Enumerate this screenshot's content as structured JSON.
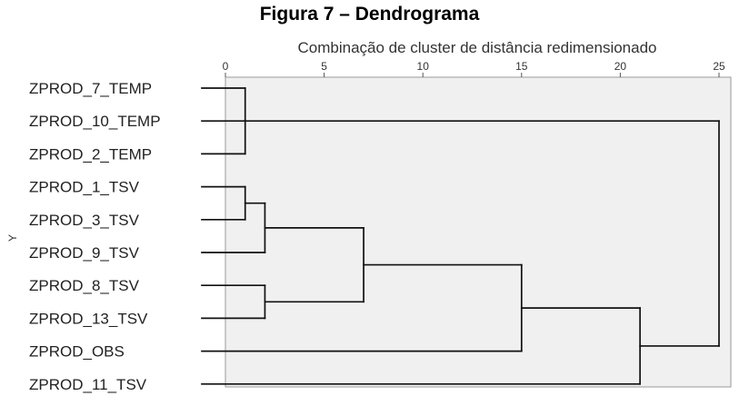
{
  "figure_title": "Figura 7 – Dendrograma",
  "chart_data": {
    "type": "dendrogram",
    "title": "Figura 7 – Dendrograma",
    "xlabel": "Combinação de cluster de distância redimensionado",
    "ylabel": "Y",
    "xlim": [
      0,
      25
    ],
    "xticks": [
      0,
      5,
      10,
      15,
      20,
      25
    ],
    "xtick_labels": [
      "0",
      "5",
      "10",
      "15",
      "20",
      "25"
    ],
    "grid": false,
    "leaves": [
      "ZPROD_7_TEMP",
      "ZPROD_10_TEMP",
      "ZPROD_2_TEMP",
      "ZPROD_1_TSV",
      "ZPROD_3_TSV",
      "ZPROD_9_TSV",
      "ZPROD_8_TSV",
      "ZPROD_13_TSV",
      "ZPROD_OBS",
      "ZPROD_11_TSV"
    ],
    "merges": [
      {
        "id": "c1",
        "children": [
          "ZPROD_7_TEMP",
          "ZPROD_2_TEMP"
        ],
        "distance": 1
      },
      {
        "id": "c2",
        "children": [
          "ZPROD_1_TSV",
          "ZPROD_3_TSV"
        ],
        "distance": 1
      },
      {
        "id": "c3",
        "children": [
          "c2",
          "ZPROD_9_TSV"
        ],
        "distance": 2
      },
      {
        "id": "c4",
        "children": [
          "ZPROD_8_TSV",
          "ZPROD_13_TSV"
        ],
        "distance": 2
      },
      {
        "id": "c5",
        "children": [
          "c3",
          "c4"
        ],
        "distance": 7
      },
      {
        "id": "c6",
        "children": [
          "c5",
          "ZPROD_OBS"
        ],
        "distance": 15
      },
      {
        "id": "c7",
        "children": [
          "c6",
          "ZPROD_11_TSV"
        ],
        "distance": 21
      },
      {
        "id": "c8",
        "children": [
          "ZPROD_10_TEMP",
          "c7"
        ],
        "distance": 25
      }
    ]
  }
}
